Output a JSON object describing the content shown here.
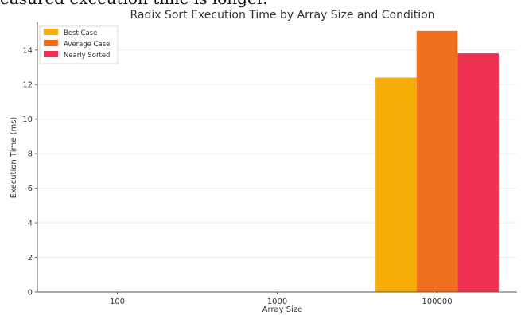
{
  "page": {
    "top_fragment_text": "easured execution time is longer."
  },
  "chart_data": {
    "type": "bar",
    "title": "Radix Sort Execution Time by Array Size and Condition",
    "xlabel": "Array Size",
    "ylabel": "Execution Time (ms)",
    "categories": [
      "100",
      "1000",
      "100000"
    ],
    "ylim": [
      0,
      15.6
    ],
    "yticks": [
      0,
      2,
      4,
      6,
      8,
      10,
      12,
      14
    ],
    "grid": true,
    "legend_position": "top-left",
    "series": [
      {
        "name": "Best Case",
        "color": "#f6ad06",
        "values": [
          0,
          0,
          12.4
        ]
      },
      {
        "name": "Average Case",
        "color": "#f06f1f",
        "values": [
          0,
          0,
          15.1
        ]
      },
      {
        "name": "Nearly Sorted",
        "color": "#ee3150",
        "values": [
          0,
          0,
          13.8
        ]
      }
    ]
  }
}
